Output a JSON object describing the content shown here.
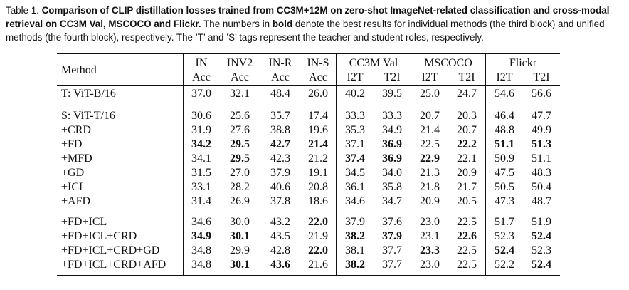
{
  "caption": {
    "label": "Table 1.",
    "bold_title": "Comparison of CLIP distillation losses trained from CC3M+12M on zero-shot ImageNet-related classification and cross-modal retrieval on CC3M Val, MSCOCO and Flickr.",
    "text_before_bold": "The numbers in",
    "bold_word": "bold",
    "text_after_bold": "denote the best results for individual methods (the third block) and unified methods (the fourth block), respectively. The ’T’ and ’S’ tags represent the teacher and student roles, respectively."
  },
  "table": {
    "header_top": [
      "IN",
      "INV2",
      "IN-R",
      "IN-S",
      "CC3M Val",
      "MSCOCO",
      "Flickr"
    ],
    "header_bottom": [
      "Acc",
      "Acc",
      "Acc",
      "Acc",
      "I2T",
      "T2I",
      "I2T",
      "T2I",
      "I2T",
      "T2I"
    ],
    "method_header": "Method",
    "teacher_block": [
      {
        "method": "T: ViT-B/16",
        "values": [
          "37.0",
          "32.1",
          "48.4",
          "26.0",
          "40.2",
          "39.5",
          "25.0",
          "24.7",
          "54.6",
          "56.6"
        ],
        "bold": []
      }
    ],
    "individual_block": [
      {
        "method": "S: ViT-T/16",
        "values": [
          "30.6",
          "25.6",
          "35.7",
          "17.4",
          "33.3",
          "33.3",
          "20.7",
          "20.3",
          "46.4",
          "47.7"
        ],
        "bold": []
      },
      {
        "method": "+CRD",
        "values": [
          "31.9",
          "27.6",
          "38.8",
          "19.6",
          "35.3",
          "34.9",
          "21.4",
          "20.7",
          "48.8",
          "49.9"
        ],
        "bold": []
      },
      {
        "method": "+FD",
        "values": [
          "34.2",
          "29.5",
          "42.7",
          "21.4",
          "37.1",
          "36.9",
          "22.5",
          "22.2",
          "51.1",
          "51.3"
        ],
        "bold": [
          0,
          1,
          2,
          3,
          5,
          7,
          8,
          9
        ]
      },
      {
        "method": "+MFD",
        "values": [
          "34.1",
          "29.5",
          "42.3",
          "21.2",
          "37.4",
          "36.9",
          "22.9",
          "22.1",
          "50.9",
          "51.1"
        ],
        "bold": [
          1,
          4,
          5,
          6
        ]
      },
      {
        "method": "+GD",
        "values": [
          "31.5",
          "27.0",
          "37.9",
          "19.1",
          "34.5",
          "34.0",
          "21.3",
          "20.9",
          "47.5",
          "48.3"
        ],
        "bold": []
      },
      {
        "method": "+ICL",
        "values": [
          "33.1",
          "28.2",
          "40.6",
          "20.8",
          "36.1",
          "35.8",
          "21.8",
          "21.7",
          "50.5",
          "50.4"
        ],
        "bold": []
      },
      {
        "method": "+AFD",
        "values": [
          "31.4",
          "26.9",
          "37.8",
          "18.6",
          "34.6",
          "34.7",
          "20.9",
          "20.5",
          "47.3",
          "48.7"
        ],
        "bold": []
      }
    ],
    "unified_block": [
      {
        "method": "+FD+ICL",
        "values": [
          "34.6",
          "30.0",
          "43.2",
          "22.0",
          "37.9",
          "37.6",
          "23.0",
          "22.5",
          "51.7",
          "51.9"
        ],
        "bold": [
          3
        ]
      },
      {
        "method": "+FD+ICL+CRD",
        "values": [
          "34.9",
          "30.1",
          "43.5",
          "21.9",
          "38.2",
          "37.9",
          "23.1",
          "22.6",
          "52.3",
          "52.4"
        ],
        "bold": [
          0,
          1,
          4,
          5,
          7,
          9
        ]
      },
      {
        "method": "+FD+ICL+CRD+GD",
        "values": [
          "34.8",
          "29.9",
          "42.8",
          "22.0",
          "38.1",
          "37.7",
          "23.3",
          "22.5",
          "52.4",
          "52.3"
        ],
        "bold": [
          3,
          6,
          8
        ]
      },
      {
        "method": "+FD+ICL+CRD+AFD",
        "values": [
          "34.8",
          "30.1",
          "43.6",
          "21.6",
          "38.2",
          "37.7",
          "23.0",
          "22.5",
          "52.2",
          "52.4"
        ],
        "bold": [
          1,
          2,
          4,
          9
        ]
      }
    ]
  }
}
